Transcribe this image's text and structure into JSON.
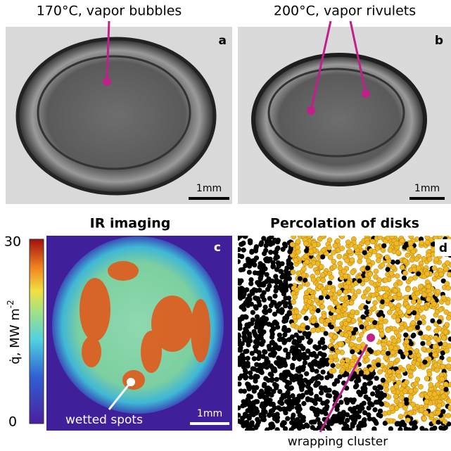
{
  "panels": [
    {
      "label": "a",
      "caption": "170°C, vapor bubbles",
      "scale_bar": "1mm"
    },
    {
      "label": "b",
      "caption": "200°C, vapor rivulets",
      "scale_bar": "1mm"
    },
    {
      "label": "c",
      "title": "IR imaging",
      "scale_bar": "1mm",
      "annotation": "wetted spots",
      "colorbar": {
        "max": 30,
        "min": 0,
        "label": "q̇, MW m",
        "label_exponent": "-2"
      }
    },
    {
      "label": "d",
      "title": "Percolation of disks",
      "annotation": "wrapping cluster"
    }
  ]
}
